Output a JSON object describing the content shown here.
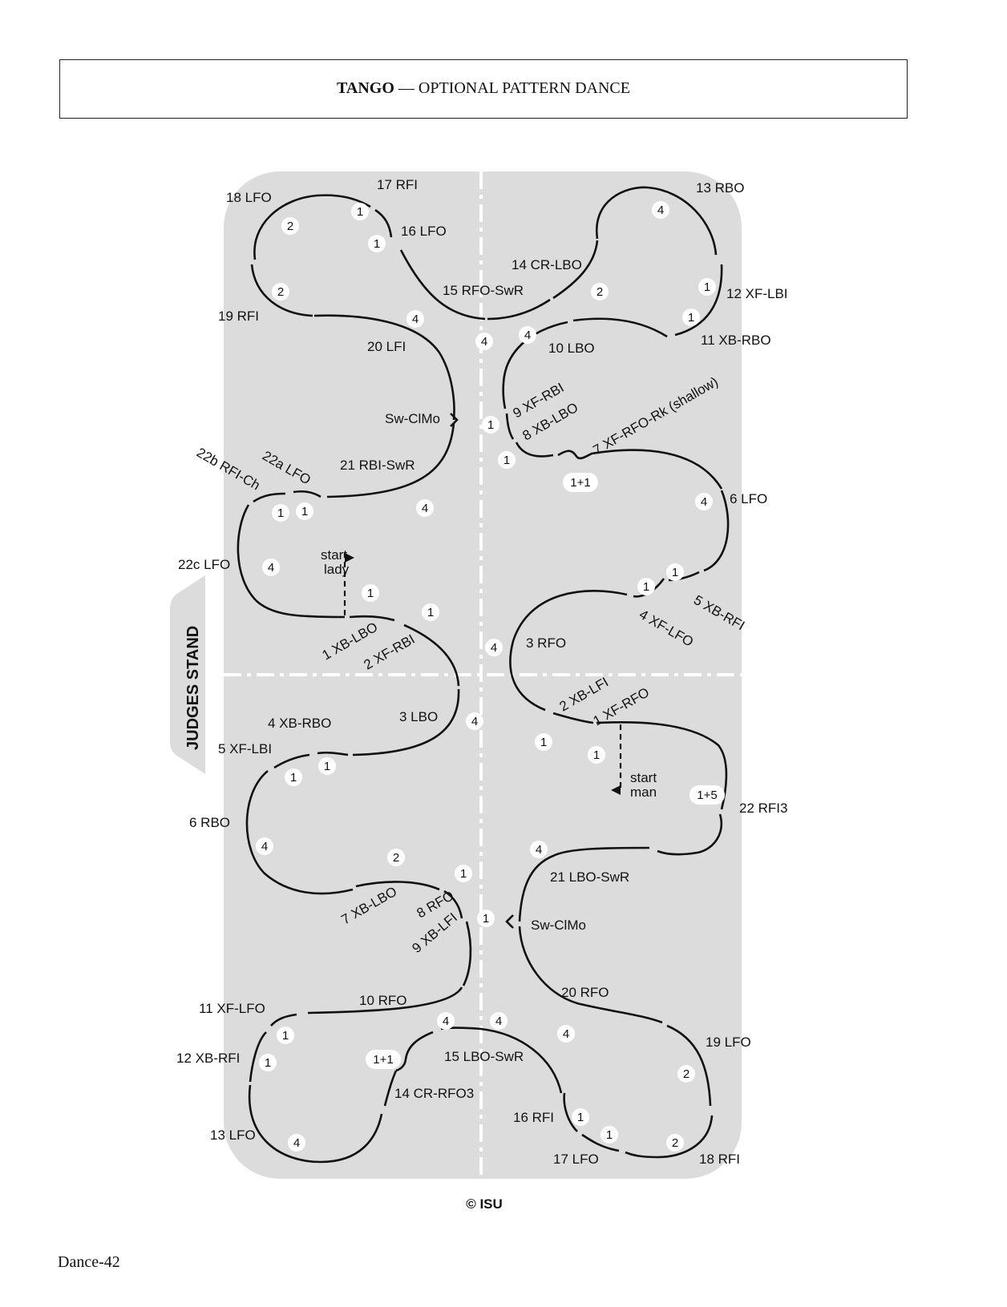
{
  "header": {
    "title": "TANGO",
    "separator": " — ",
    "subtitle": "OPTIONAL PATTERN DANCE"
  },
  "judges_stand": "JUDGES STAND",
  "copyright": "© ISU",
  "page_number": "Dance-42",
  "start_lady": [
    "start",
    "lady"
  ],
  "start_man": [
    "start",
    "man"
  ],
  "step_labels": {
    "l18": "18 LFO",
    "l17": "17 RFI",
    "l16": "16 LFO",
    "l19": "19 RFI",
    "l15": "15 RFO-SwR",
    "l14": "14 CR-LBO",
    "l13": "13 RBO",
    "l12": "12 XF-LBI",
    "l11": "11 XB-RBO",
    "l20": "20 LFI",
    "l10": "10 LBO",
    "lsw1": "Sw-ClMo",
    "l9": "9 XF-RBI",
    "l8": "8 XB-LBO",
    "l7": "7 XF-RFO-Rk (shallow)",
    "l22b": "22b RFI-Ch",
    "l22a": "22a LFO",
    "l21": "21 RBI-SwR",
    "l6": "6 LFO",
    "l22c": "22c LFO",
    "l5": "5 XB-RFI",
    "l4": "4 XF-LFO",
    "l1": "1 XB-LBO",
    "l2": "2 XF-RBI",
    "l3": "3 RFO",
    "m2": "2 XB-LFI",
    "m1": "1 XF-RFO",
    "m3": "3 LBO",
    "m4": "4 XB-RBO",
    "m5": "5 XF-LBI",
    "m6": "6 RBO",
    "m22": "22 RFI3",
    "m7": "7 XB-LBO",
    "m8": "8 RFO",
    "m9": "9 XB-LFI",
    "m21": "21 LBO-SwR",
    "msw": "Sw-ClMo",
    "m10": "10 RFO",
    "m11": "11 XF-LFO",
    "m20": "20 RFO",
    "m12": "12 XB-RFI",
    "m15": "15 LBO-SwR",
    "m19": "19 LFO",
    "m14": "14 CR-RFO3",
    "m16": "16 RFI",
    "m13": "13 LFO",
    "m17": "17 LFO",
    "m18": "18 RFI"
  },
  "beat_counts": {
    "b1": "1",
    "b2": "2",
    "b4": "4",
    "b11": "1+1",
    "b15": "1+5"
  },
  "colors": {
    "rink": "#dcdcdc",
    "line": "#111111",
    "axis": "#ffffff",
    "bubble": "#ffffff"
  }
}
